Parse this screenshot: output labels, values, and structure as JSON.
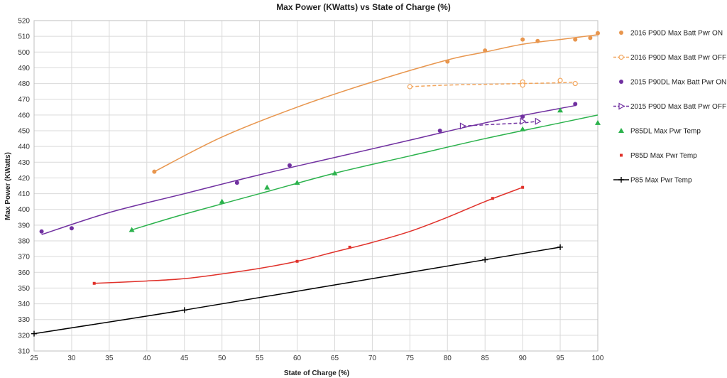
{
  "chart_data": {
    "type": "scatter",
    "title": "Max Power (KWatts) vs State of Charge (%)",
    "xlabel": "State of Charge (%)",
    "ylabel": "Max Power (KWatts)",
    "xlim": [
      25,
      100
    ],
    "ylim": [
      310,
      520
    ],
    "xticks": [
      25,
      30,
      35,
      40,
      45,
      50,
      55,
      60,
      65,
      70,
      75,
      80,
      85,
      90,
      95,
      100
    ],
    "yticks": [
      310,
      320,
      330,
      340,
      350,
      360,
      370,
      380,
      390,
      400,
      410,
      420,
      430,
      440,
      450,
      460,
      470,
      480,
      490,
      500,
      510,
      520
    ],
    "grid": true,
    "legend_position": "right",
    "series": [
      {
        "name": "2016 P90D Max Batt Pwr ON",
        "color": "#e8964e",
        "marker": "circle",
        "points": [
          [
            41,
            424
          ],
          [
            80,
            494
          ],
          [
            85,
            501
          ],
          [
            90,
            508
          ],
          [
            92,
            507
          ],
          [
            97,
            508
          ],
          [
            99,
            509
          ],
          [
            100,
            512
          ]
        ],
        "trend": [
          [
            41,
            424
          ],
          [
            50,
            446
          ],
          [
            60,
            465
          ],
          [
            70,
            481
          ],
          [
            80,
            495
          ],
          [
            85,
            500
          ],
          [
            90,
            505
          ],
          [
            95,
            508
          ],
          [
            100,
            511
          ]
        ],
        "trend_style": "solid"
      },
      {
        "name": "2016 P90D Max Batt Pwr OFF",
        "color": "#f2a55c",
        "marker": "open-circle",
        "points": [
          [
            75,
            478
          ],
          [
            90,
            481
          ],
          [
            90,
            479
          ],
          [
            95,
            482
          ],
          [
            97,
            480
          ]
        ],
        "trend": [
          [
            75,
            478
          ],
          [
            80,
            479
          ],
          [
            85,
            479.5
          ],
          [
            90,
            480
          ],
          [
            95,
            480.5
          ],
          [
            97,
            481
          ]
        ],
        "trend_style": "dashed"
      },
      {
        "name": "2015 P90DL Max Batt Pwr ON",
        "color": "#7030a0",
        "marker": "circle",
        "points": [
          [
            26,
            386
          ],
          [
            30,
            388
          ],
          [
            52,
            417
          ],
          [
            59,
            428
          ],
          [
            79,
            450
          ],
          [
            90,
            459
          ],
          [
            97,
            467
          ]
        ],
        "trend": [
          [
            26,
            384
          ],
          [
            35,
            398
          ],
          [
            45,
            410
          ],
          [
            55,
            422
          ],
          [
            65,
            433
          ],
          [
            75,
            444
          ],
          [
            85,
            455
          ],
          [
            97,
            466
          ]
        ],
        "trend_style": "solid"
      },
      {
        "name": "2015 P90D Max Batt Pwr OFF",
        "color": "#7030a0",
        "marker": "open-triangle",
        "points": [
          [
            82,
            453
          ],
          [
            90,
            456
          ],
          [
            92,
            456
          ]
        ],
        "trend": [
          [
            82,
            453
          ],
          [
            86,
            454
          ],
          [
            90,
            455
          ],
          [
            92,
            456
          ]
        ],
        "trend_style": "dashed"
      },
      {
        "name": "P85DL Max Pwr Temp",
        "color": "#2bb24c",
        "marker": "triangle",
        "points": [
          [
            38,
            387
          ],
          [
            50,
            405
          ],
          [
            56,
            414
          ],
          [
            60,
            417
          ],
          [
            65,
            423
          ],
          [
            90,
            451
          ],
          [
            95,
            463
          ],
          [
            100,
            455
          ]
        ],
        "trend": [
          [
            38,
            387
          ],
          [
            45,
            397
          ],
          [
            55,
            410
          ],
          [
            65,
            423
          ],
          [
            75,
            434
          ],
          [
            85,
            445
          ],
          [
            95,
            455
          ],
          [
            100,
            460
          ]
        ],
        "trend_style": "solid"
      },
      {
        "name": "P85D Max Pwr Temp",
        "color": "#e0312a",
        "marker": "square",
        "points": [
          [
            33,
            353
          ],
          [
            60,
            367
          ],
          [
            67,
            376
          ],
          [
            86,
            407
          ],
          [
            90,
            414
          ]
        ],
        "trend": [
          [
            33,
            353
          ],
          [
            40,
            354.5
          ],
          [
            45,
            356
          ],
          [
            50,
            359
          ],
          [
            55,
            362.5
          ],
          [
            60,
            367
          ],
          [
            65,
            373
          ],
          [
            70,
            379
          ],
          [
            75,
            386
          ],
          [
            80,
            395
          ],
          [
            85,
            405
          ],
          [
            90,
            414
          ]
        ],
        "trend_style": "solid"
      },
      {
        "name": "P85 Max Pwr Temp",
        "color": "#000000",
        "marker": "plus",
        "points": [
          [
            25,
            321
          ],
          [
            45,
            336
          ],
          [
            85,
            368
          ],
          [
            95,
            376
          ]
        ],
        "trend": [
          [
            25,
            321
          ],
          [
            45,
            336
          ],
          [
            65,
            352
          ],
          [
            85,
            368
          ],
          [
            95,
            376
          ]
        ],
        "trend_style": "solid"
      }
    ]
  }
}
